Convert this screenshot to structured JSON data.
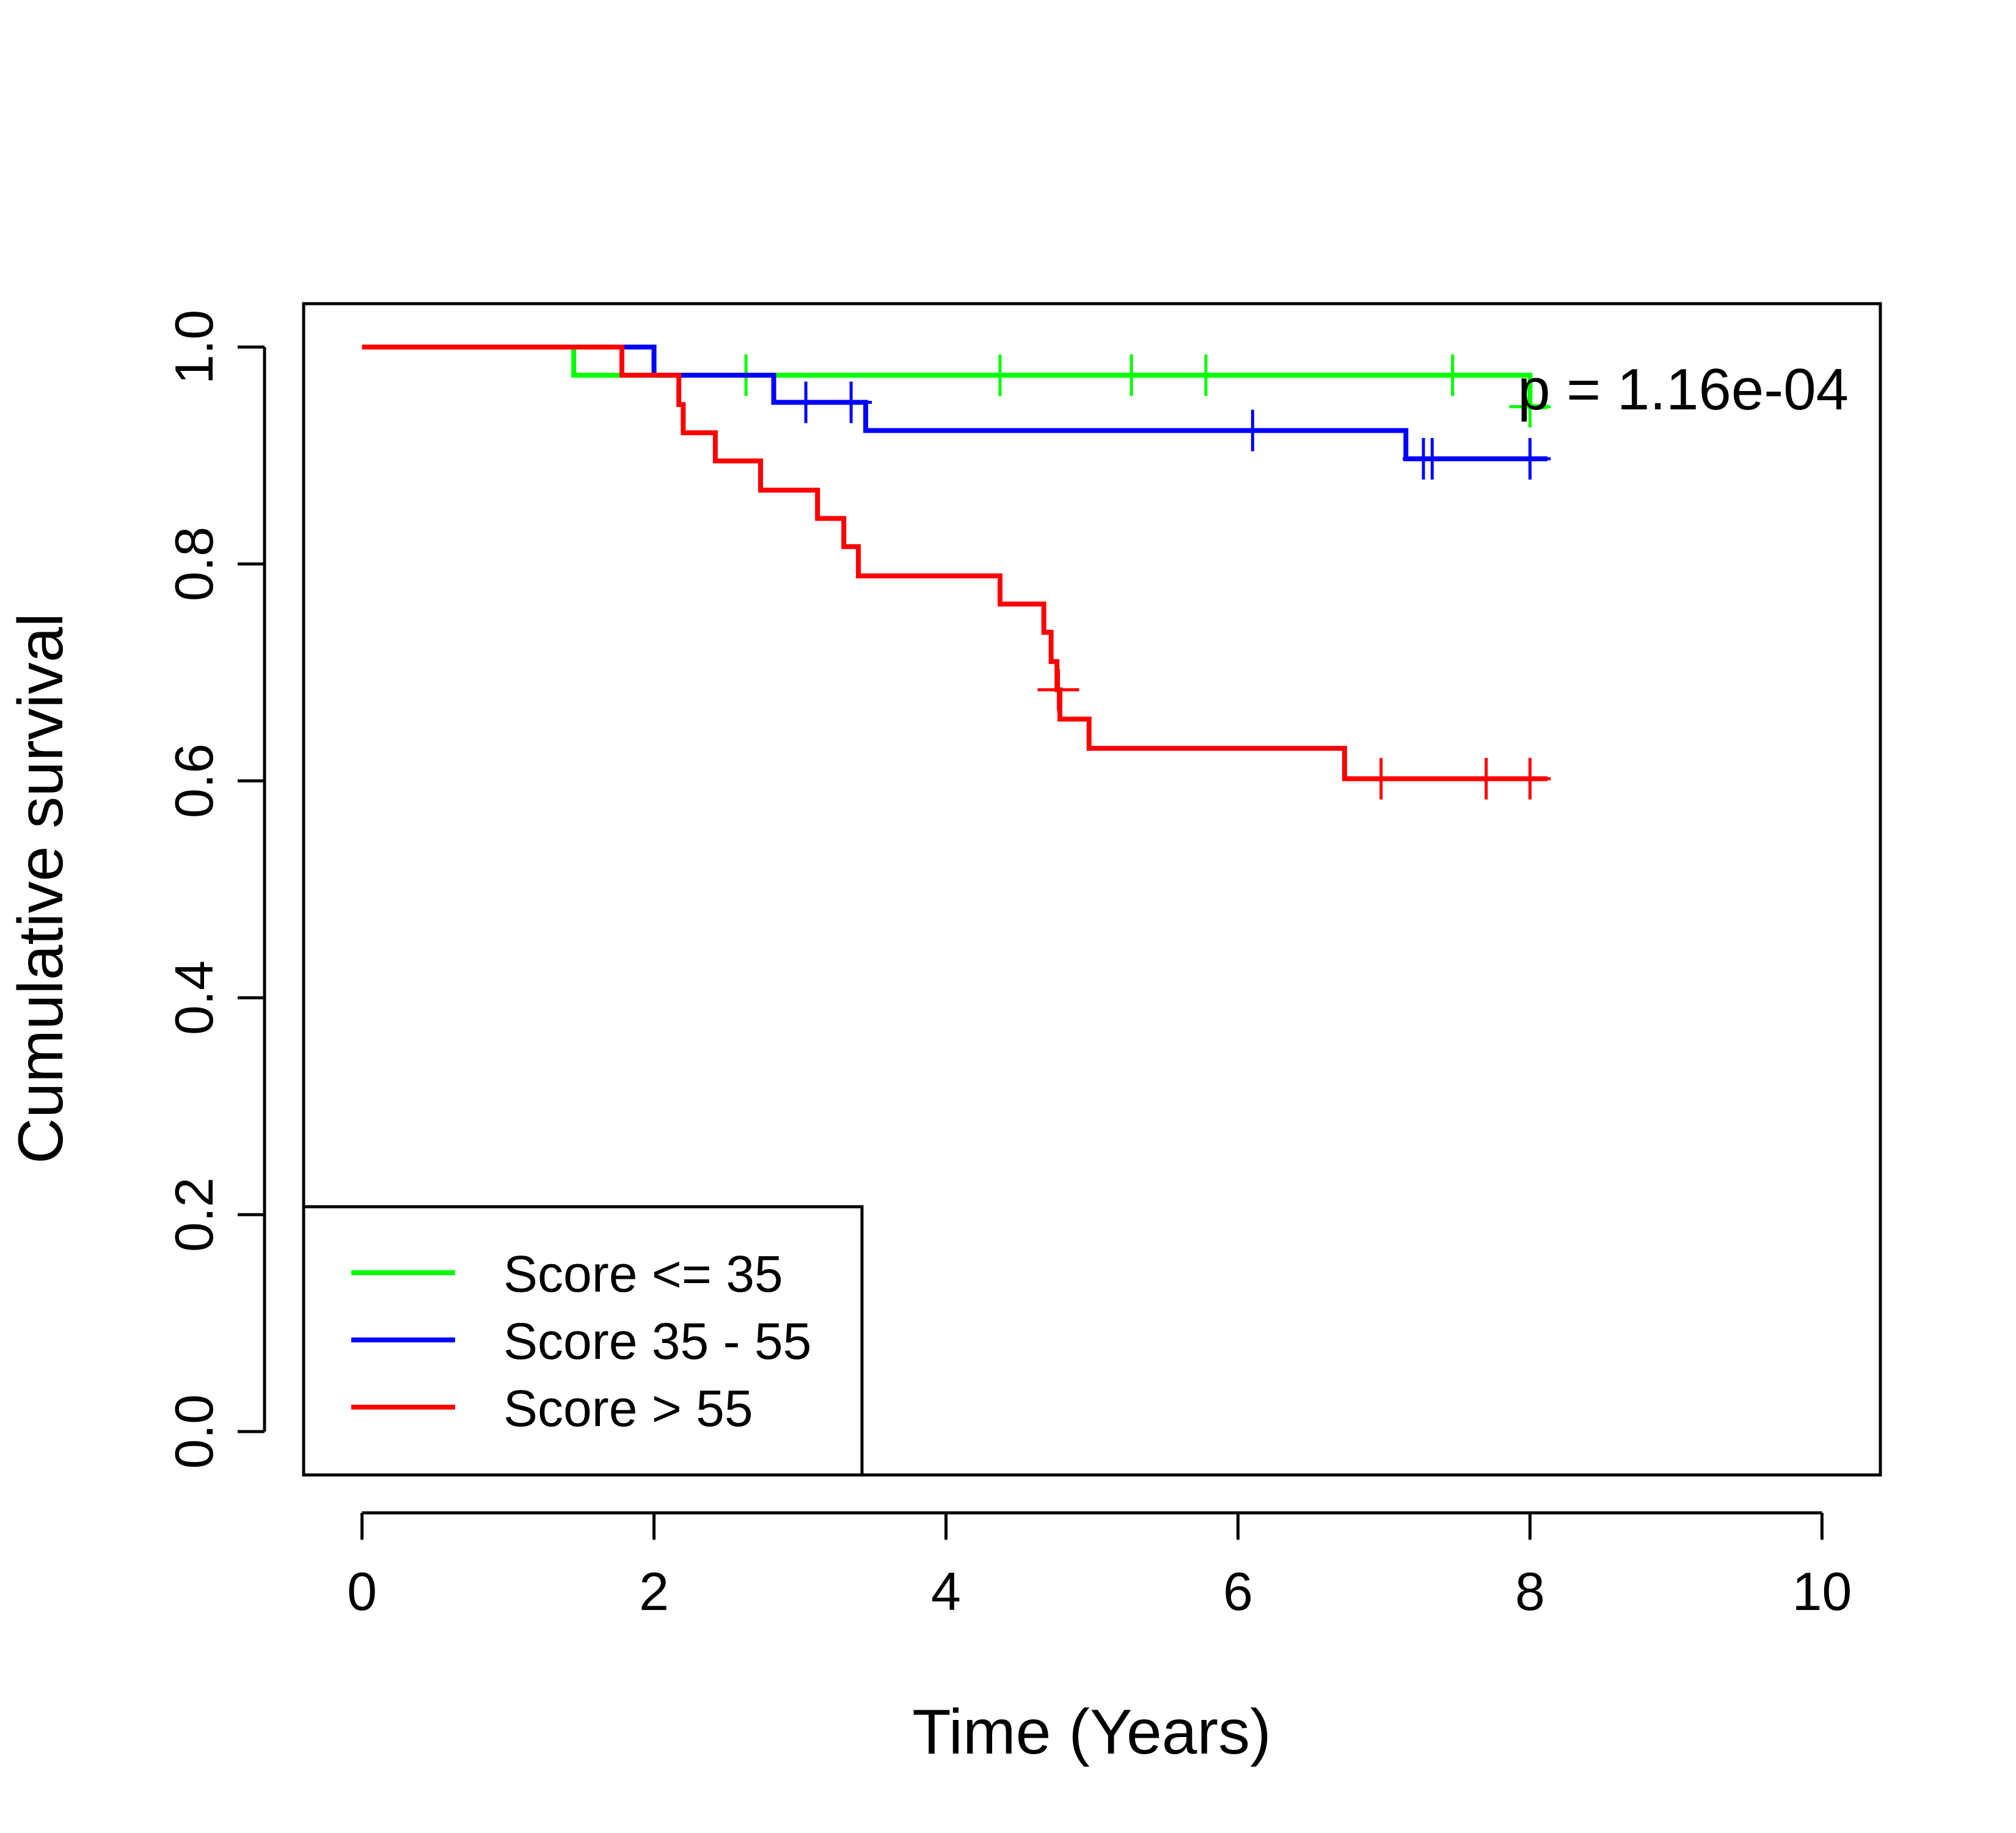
{
  "chart_data": {
    "type": "line",
    "subtype": "kaplan-meier",
    "title": "",
    "xlabel": "Time (Years)",
    "ylabel": "Cumulative survival",
    "xlim": [
      -0.4,
      10.4
    ],
    "ylim": [
      -0.04,
      1.04
    ],
    "xticks": [
      0,
      2,
      4,
      6,
      8,
      10
    ],
    "yticks": [
      0.0,
      0.2,
      0.4,
      0.6,
      0.8,
      1.0
    ],
    "xtick_labels": [
      "0",
      "2",
      "4",
      "6",
      "8",
      "10"
    ],
    "ytick_labels": [
      "0.0",
      "0.2",
      "0.4",
      "0.6",
      "0.8",
      "1.0"
    ],
    "grid": false,
    "annotation": "p = 1.16e-04",
    "legend": {
      "placement": "bottom-left",
      "entries": [
        "Score <= 35",
        "Score 35 - 55",
        "Score > 55"
      ]
    },
    "series": [
      {
        "name": "Score <= 35",
        "color": "#00ff00",
        "steps": [
          [
            0,
            1.0
          ],
          [
            1.45,
            0.974
          ],
          [
            8.0,
            0.945
          ],
          [
            8.12,
            0.945
          ]
        ],
        "censors": [
          [
            2.63,
            0.974
          ],
          [
            4.37,
            0.974
          ],
          [
            5.27,
            0.974
          ],
          [
            5.78,
            0.974
          ],
          [
            7.47,
            0.974
          ],
          [
            8.0,
            0.945
          ]
        ]
      },
      {
        "name": "Score 35 - 55",
        "color": "#0000ff",
        "steps": [
          [
            0,
            1.0
          ],
          [
            2.0,
            0.974
          ],
          [
            2.82,
            0.949
          ],
          [
            3.45,
            0.923
          ],
          [
            7.15,
            0.897
          ],
          [
            8.12,
            0.897
          ]
        ],
        "censors": [
          [
            3.04,
            0.949
          ],
          [
            3.35,
            0.949
          ],
          [
            6.1,
            0.923
          ],
          [
            7.27,
            0.897
          ],
          [
            7.33,
            0.897
          ],
          [
            8.0,
            0.897
          ]
        ]
      },
      {
        "name": "Score > 55",
        "color": "#ff0000",
        "steps": [
          [
            0,
            1.0
          ],
          [
            1.78,
            0.974
          ],
          [
            2.17,
            0.947
          ],
          [
            2.2,
            0.921
          ],
          [
            2.42,
            0.895
          ],
          [
            2.73,
            0.868
          ],
          [
            3.12,
            0.842
          ],
          [
            3.3,
            0.816
          ],
          [
            3.4,
            0.789
          ],
          [
            4.37,
            0.763
          ],
          [
            4.67,
            0.737
          ],
          [
            4.72,
            0.71
          ],
          [
            4.76,
            0.684
          ],
          [
            4.78,
            0.657
          ],
          [
            4.98,
            0.63
          ],
          [
            6.73,
            0.602
          ],
          [
            8.12,
            0.602
          ]
        ],
        "censors": [
          [
            4.77,
            0.684
          ],
          [
            6.98,
            0.602
          ],
          [
            7.7,
            0.602
          ],
          [
            8.0,
            0.602
          ]
        ]
      }
    ]
  }
}
